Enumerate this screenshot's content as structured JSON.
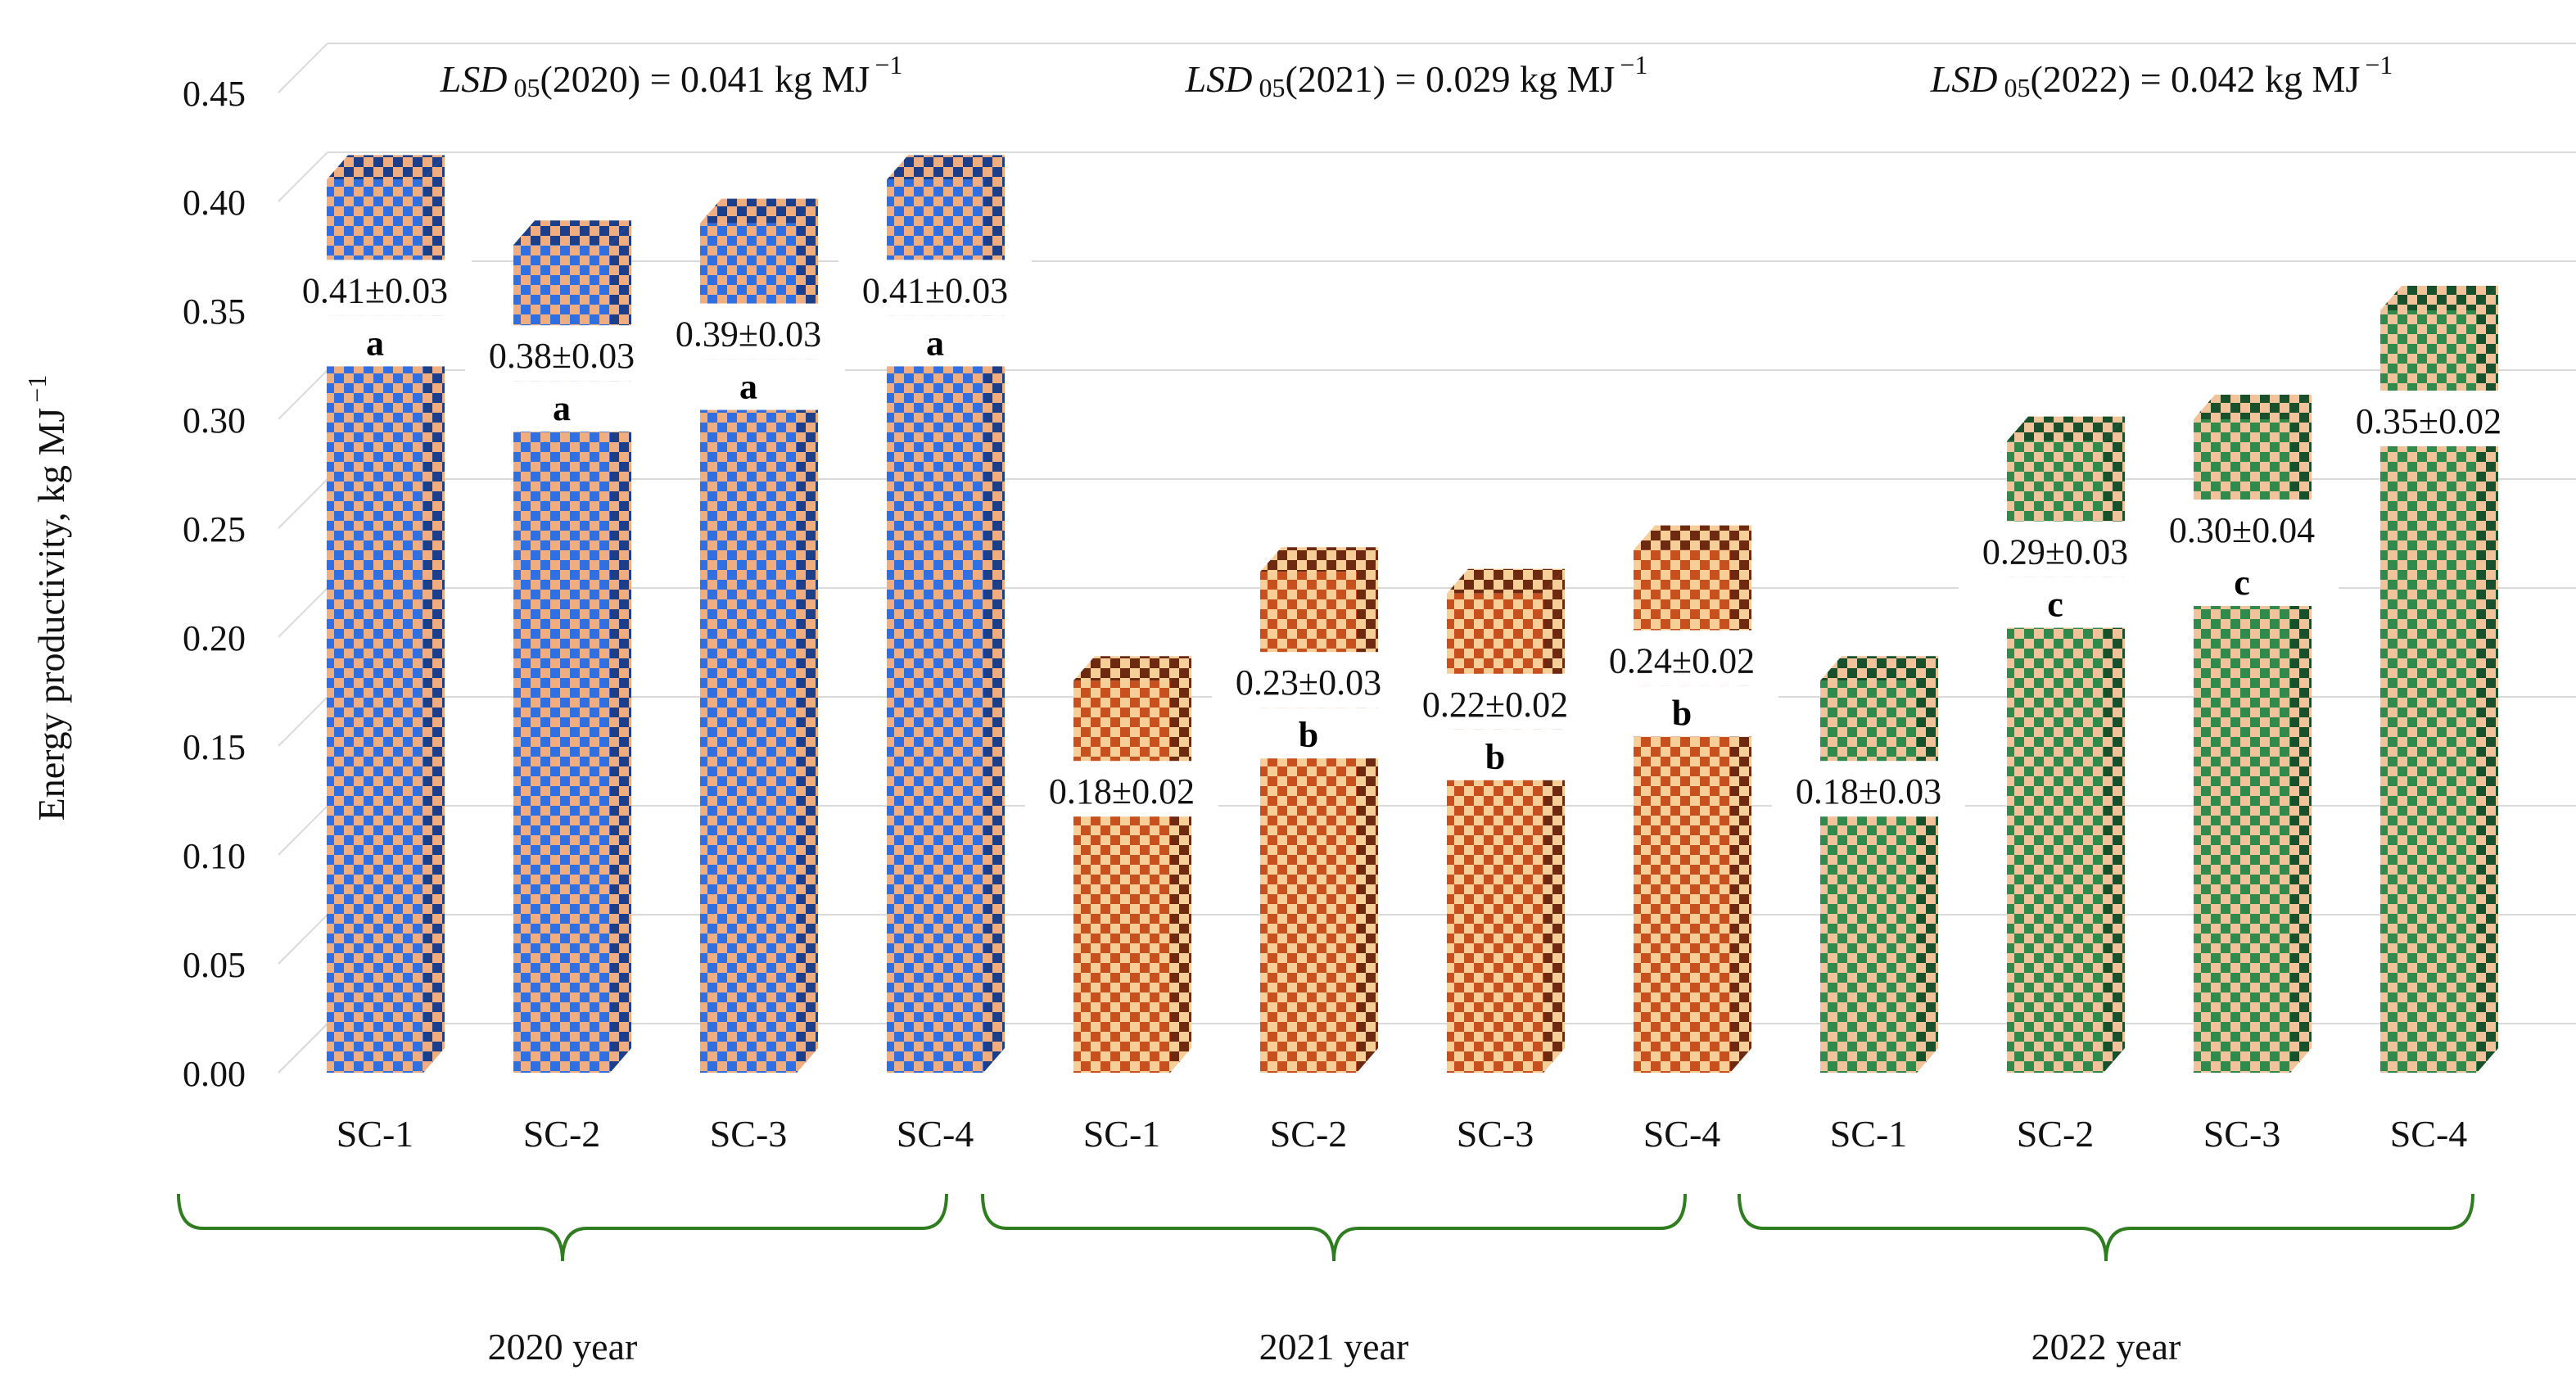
{
  "chart_data": {
    "type": "bar",
    "ylabel": "Energy productivity,  kg MJ",
    "ylabel_sup": "−1",
    "ylim": [
      0,
      0.45
    ],
    "yticks": [
      "0.00",
      "0.05",
      "0.10",
      "0.15",
      "0.20",
      "0.25",
      "0.30",
      "0.35",
      "0.40",
      "0.45"
    ],
    "categories": [
      "SC-1",
      "SC-2",
      "SC-3",
      "SC-4",
      "SC-1",
      "SC-2",
      "SC-3",
      "SC-4",
      "SC-1",
      "SC-2",
      "SC-3",
      "SC-4"
    ],
    "groups": [
      {
        "name": "2020 year",
        "lsd": {
          "prefix": "LSD",
          "sub": "05",
          "rest": "(2020) = 0.041 kg MJ",
          "sup": "−1"
        },
        "colors": {
          "front": "#2f6fe0",
          "light": "#f0ad80",
          "side": "#1d3f8a"
        },
        "bars": [
          {
            "category": "SC-1",
            "value": 0.41,
            "label": "0.41±0.03",
            "letter": "a"
          },
          {
            "category": "SC-2",
            "value": 0.38,
            "label": "0.38±0.03",
            "letter": "a"
          },
          {
            "category": "SC-3",
            "value": 0.39,
            "label": "0.39±0.03",
            "letter": "a"
          },
          {
            "category": "SC-4",
            "value": 0.41,
            "label": "0.41±0.03",
            "letter": "a"
          }
        ]
      },
      {
        "name": "2021 year",
        "lsd": {
          "prefix": "LSD",
          "sub": "05",
          "rest": "(2021) = 0.029 kg MJ",
          "sup": "−1"
        },
        "colors": {
          "front": "#c8501e",
          "light": "#f6cf98",
          "side": "#6e2a10"
        },
        "bars": [
          {
            "category": "SC-1",
            "value": 0.18,
            "label": "0.18±0.02",
            "letter": ""
          },
          {
            "category": "SC-2",
            "value": 0.23,
            "label": "0.23±0.03",
            "letter": "b"
          },
          {
            "category": "SC-3",
            "value": 0.22,
            "label": "0.22±0.02",
            "letter": "b"
          },
          {
            "category": "SC-4",
            "value": 0.24,
            "label": "0.24±0.02",
            "letter": "b"
          }
        ]
      },
      {
        "name": "2022 year",
        "lsd": {
          "prefix": "LSD",
          "sub": "05",
          "rest": "(2022) = 0.042 kg MJ",
          "sup": "−1"
        },
        "colors": {
          "front": "#2f8a4c",
          "light": "#f2c39a",
          "side": "#17502b"
        },
        "bars": [
          {
            "category": "SC-1",
            "value": 0.18,
            "label": "0.18±0.03",
            "letter": ""
          },
          {
            "category": "SC-2",
            "value": 0.29,
            "label": "0.29±0.03",
            "letter": "c"
          },
          {
            "category": "SC-3",
            "value": 0.3,
            "label": "0.30±0.04",
            "letter": "c"
          },
          {
            "category": "SC-4",
            "value": 0.35,
            "label": "0.35±0.02",
            "letter": ""
          }
        ]
      }
    ],
    "bracket_color": "#2e7d1f"
  }
}
